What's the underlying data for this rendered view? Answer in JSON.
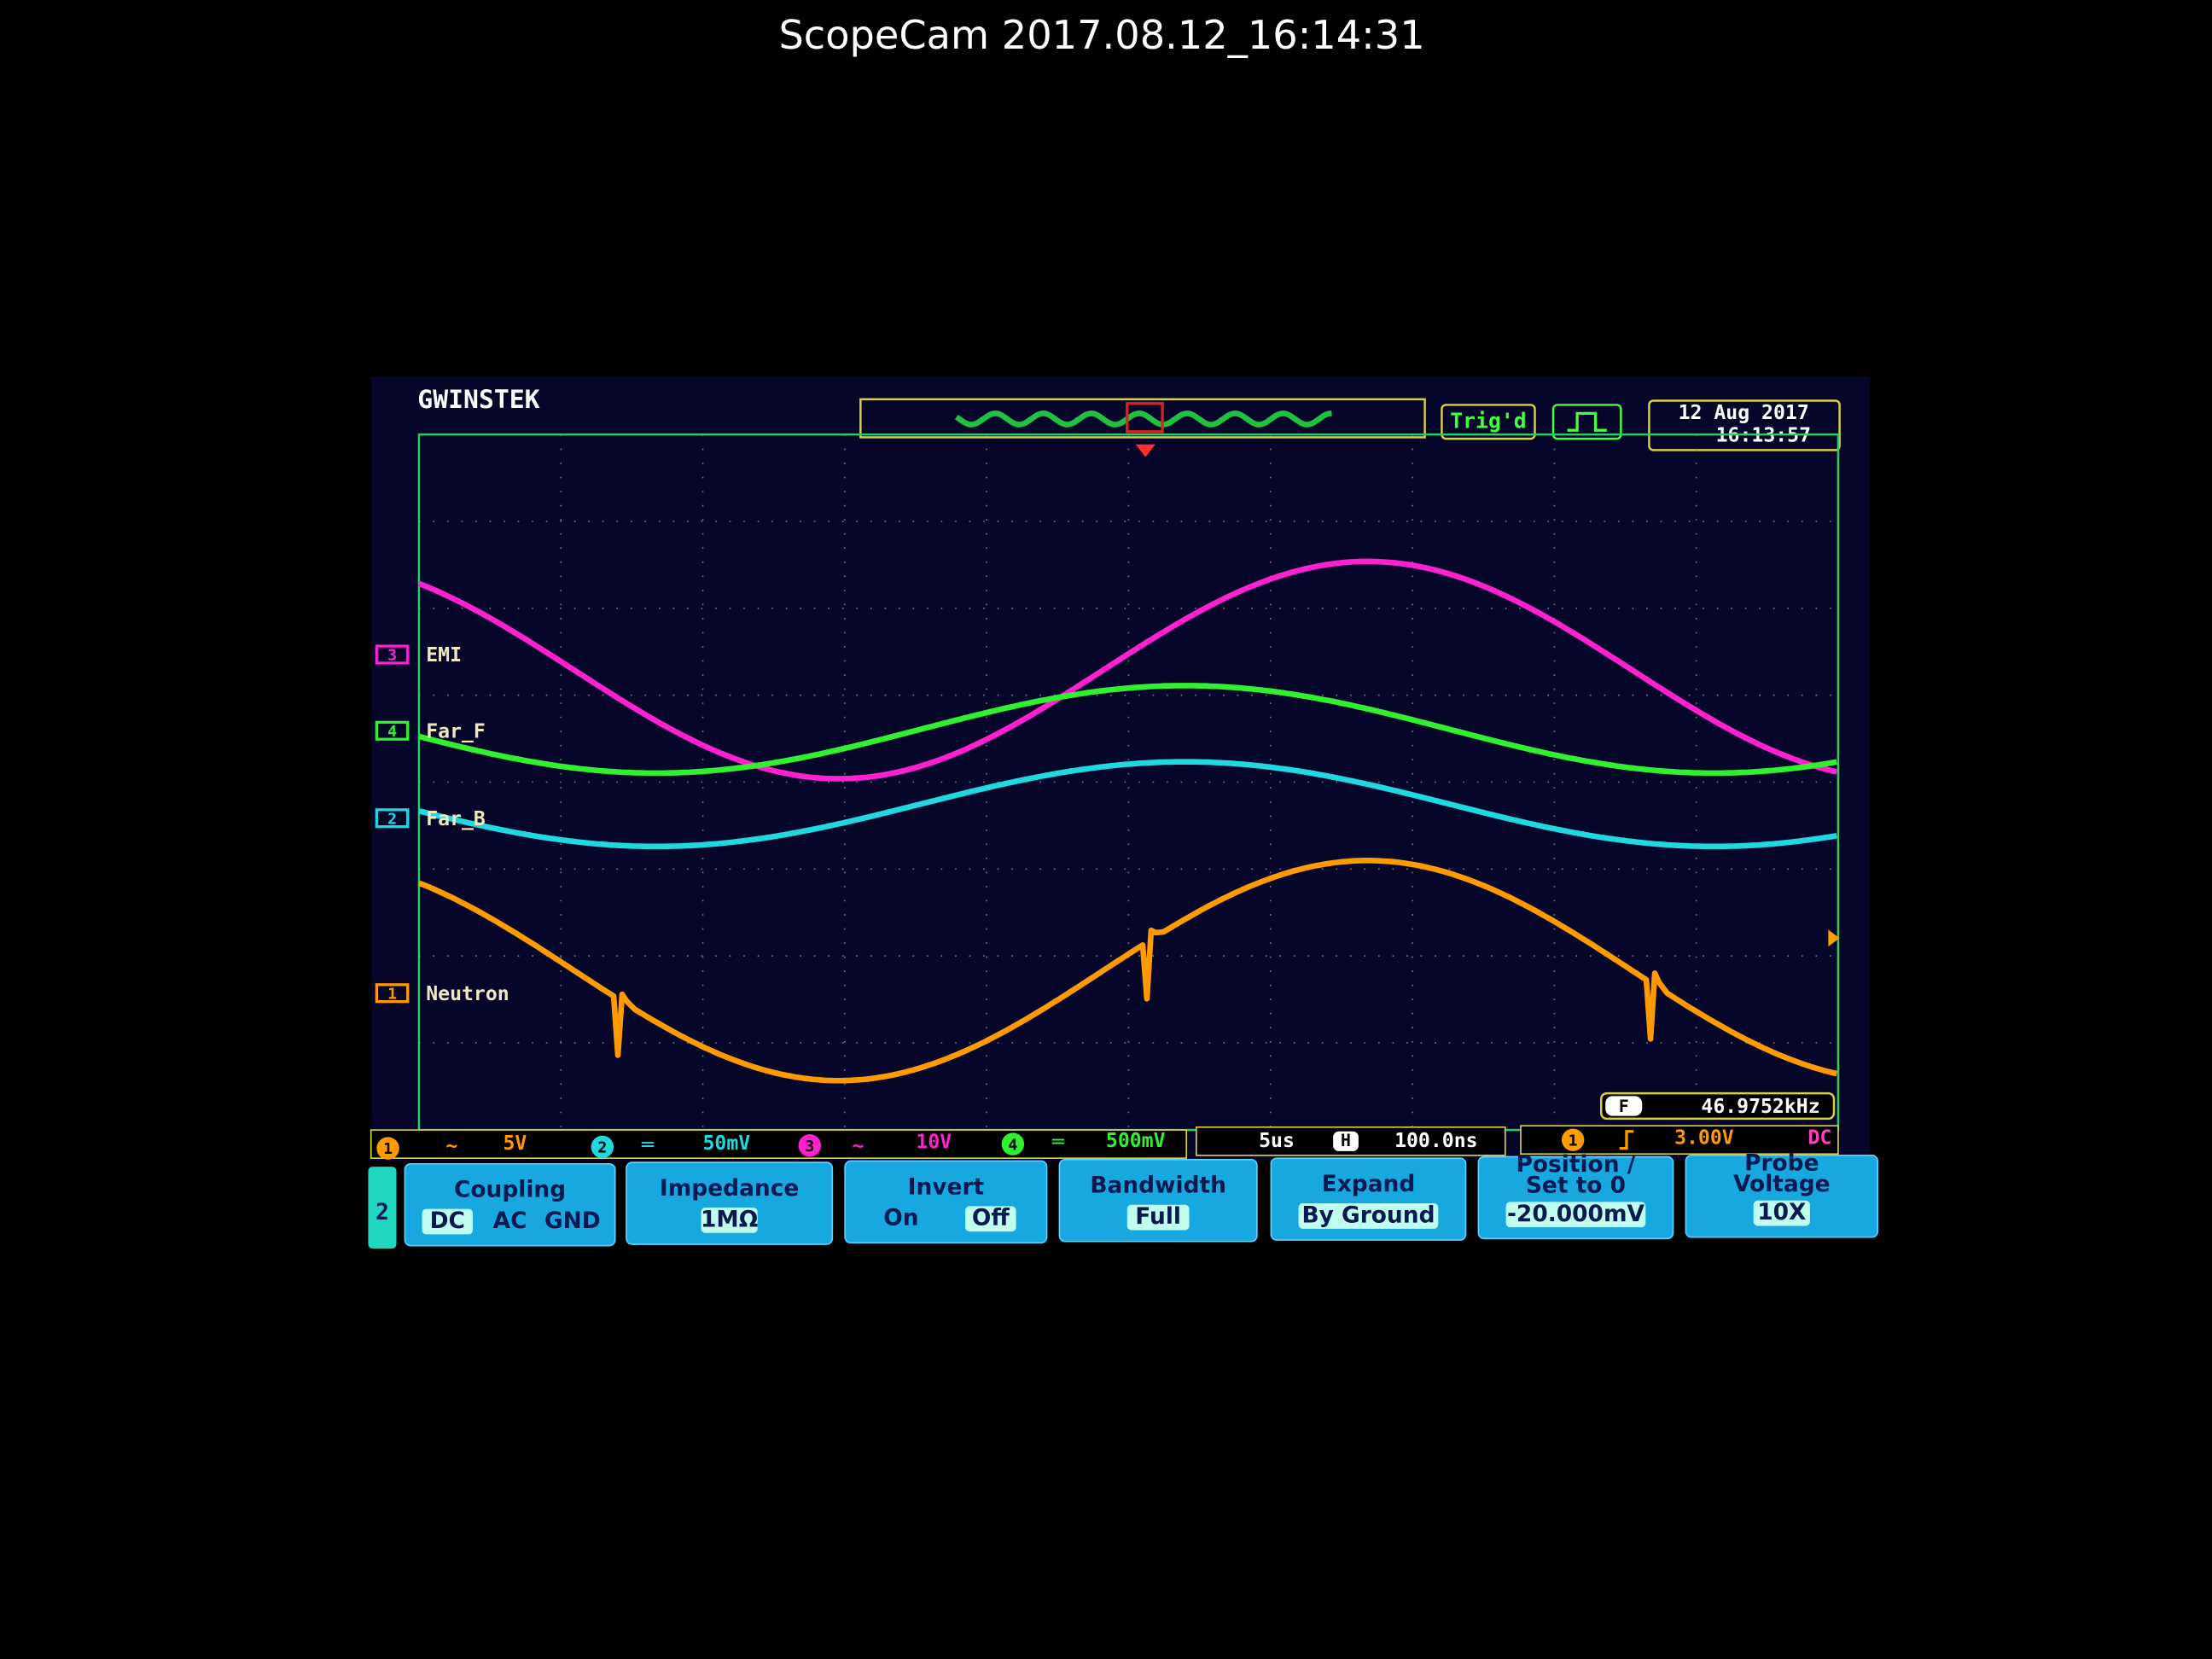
{
  "header": {
    "title": "ScopeCam  2017.08.12_16:14:31"
  },
  "scope": {
    "brand": "GWINSTEK",
    "trigger_status": "Trig'd",
    "date": "12 Aug 2017",
    "time": "16:13:57",
    "channels": [
      {
        "number": "1",
        "label": "Neutron",
        "scale": "5V"
      },
      {
        "number": "2",
        "label": "Far_B",
        "scale": "50mV"
      },
      {
        "number": "3",
        "label": "EMI",
        "scale": "10V"
      },
      {
        "number": "4",
        "label": "Far_F",
        "scale": "500mV"
      }
    ],
    "frequency": {
      "label": "F",
      "value": "46.9752kHz"
    },
    "timebase": "5us",
    "horizontal": {
      "label": "H",
      "value": "100.0ns"
    },
    "trigger": {
      "source": "1",
      "level": "3.00V",
      "coupling": "DC"
    },
    "menu": {
      "channel": "2",
      "items": [
        {
          "title": "Coupling",
          "options": [
            "DC",
            "AC",
            "GND"
          ]
        },
        {
          "title": "Impedance",
          "value": "1MΩ"
        },
        {
          "title": "Invert",
          "options": [
            "On",
            "Off"
          ]
        },
        {
          "title": "Bandwidth",
          "value": "Full"
        },
        {
          "title": "Expand",
          "value": "By Ground"
        },
        {
          "title": [
            "Position /",
            "Set to 0"
          ],
          "value": "-20.000mV"
        },
        {
          "title": [
            "Probe",
            "Voltage"
          ],
          "value": "10X"
        }
      ]
    }
  }
}
